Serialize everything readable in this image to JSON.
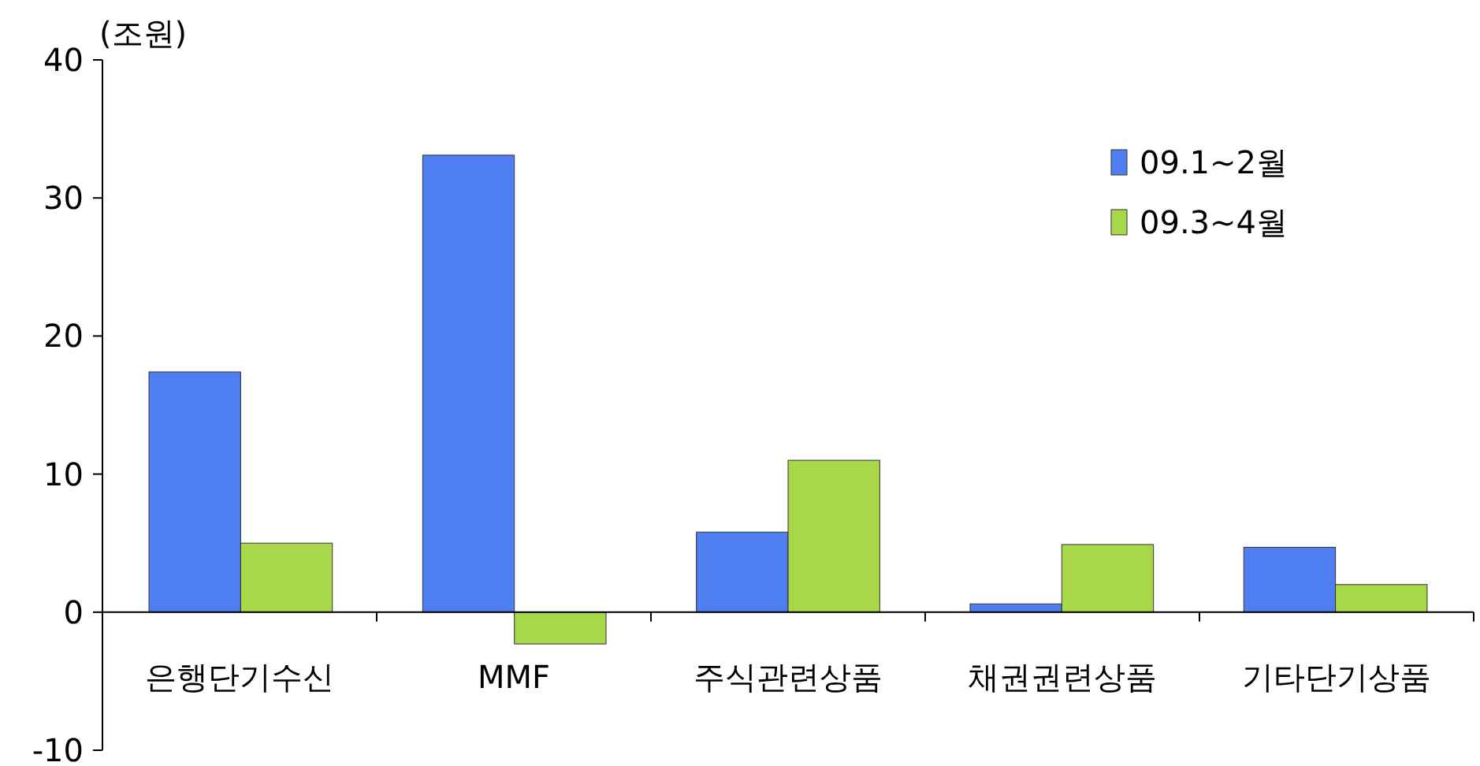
{
  "chart_data": {
    "type": "bar",
    "ylabel": "(조원)",
    "categories": [
      "은행단기수신",
      "MMF",
      "주식관련상품",
      "채권권련상품",
      "기타단기상품"
    ],
    "series": [
      {
        "name": "09.1~2월",
        "color": "#4f7ef0",
        "values": [
          17.4,
          33.1,
          5.8,
          0.6,
          4.7
        ]
      },
      {
        "name": "09.3~4월",
        "color": "#a8d84a",
        "values": [
          5,
          -2.3,
          11,
          4.9,
          2
        ]
      }
    ],
    "ylim": [
      -10,
      40
    ],
    "yticks": [
      -10,
      0,
      10,
      20,
      30,
      40
    ],
    "grid": false,
    "legend": "top right"
  }
}
